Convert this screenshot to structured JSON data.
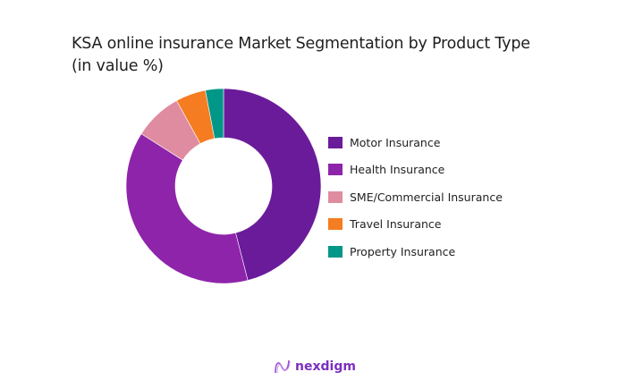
{
  "title_line1": "KSA online insurance Market Segmentation by Product Type",
  "title_line2": "(in value %)",
  "chart_data": {
    "type": "pie",
    "variant": "donut",
    "title": "KSA online insurance Market Segmentation by Product Type (in value %)",
    "categories": [
      "Motor Insurance",
      "Health Insurance",
      "SME/Commercial Insurance",
      "Travel Insurance",
      "Property Insurance"
    ],
    "values": [
      46,
      38,
      8,
      5,
      3
    ],
    "colors": [
      "#6a1b9a",
      "#8e24aa",
      "#df8ba0",
      "#f57c20",
      "#009688"
    ],
    "legend_position": "right",
    "start_angle_deg": 0,
    "direction": "clockwise"
  },
  "legend": [
    {
      "label": "Motor Insurance",
      "color": "#6a1b9a"
    },
    {
      "label": "Health Insurance",
      "color": "#8e24aa"
    },
    {
      "label": "SME/Commercial Insurance",
      "color": "#df8ba0"
    },
    {
      "label": "Travel Insurance",
      "color": "#f57c20"
    },
    {
      "label": "Property Insurance",
      "color": "#009688"
    }
  ],
  "brand": {
    "name": "nexdigm",
    "color": "#7b2fbf"
  }
}
